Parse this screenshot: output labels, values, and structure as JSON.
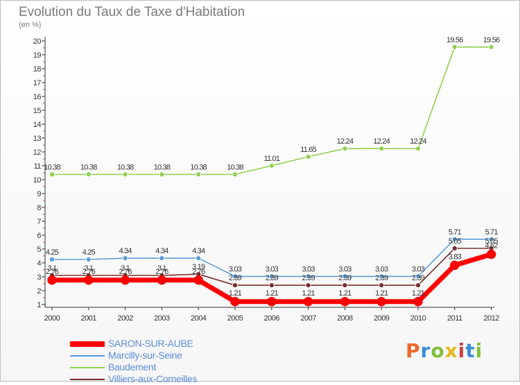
{
  "header": {
    "title": "Evolution du Taux de Taxe d'Habitation",
    "subtitle": "(en %)"
  },
  "logo": {
    "text": "Proxiti",
    "colors": [
      "#e8692c",
      "#3a8ed2",
      "#7fbf3a",
      "#e6b819",
      "#d33f3f",
      "#3a8ed2",
      "#7fbf3a"
    ]
  },
  "chart_data": {
    "type": "line",
    "title": "Evolution du Taux de Taxe d'Habitation",
    "ylabel": "(en %)",
    "xlabel": "",
    "categories": [
      "2000",
      "2001",
      "2002",
      "2003",
      "2004",
      "2005",
      "2006",
      "2007",
      "2008",
      "2009",
      "2010",
      "2011",
      "2012"
    ],
    "ylim": [
      1,
      20
    ],
    "yticks": [
      1,
      2,
      3,
      4,
      5,
      6,
      7,
      8,
      9,
      10,
      11,
      12,
      13,
      14,
      15,
      16,
      17,
      18,
      19,
      20
    ],
    "grid": false,
    "legend_position": "bottom-left",
    "series": [
      {
        "name": "SARON-SUR-AUBE",
        "color": "#ff0000",
        "values": [
          2.76,
          2.76,
          2.76,
          2.76,
          2.76,
          1.21,
          1.21,
          1.21,
          1.21,
          1.21,
          1.21,
          3.83,
          4.62
        ],
        "labels": [
          "2.76",
          "2.76",
          "2.76",
          "2.76",
          "2.76",
          "1.21",
          "1.21",
          "1.21",
          "1.21",
          "1.21",
          "1.21",
          "3.83",
          "4.62"
        ]
      },
      {
        "name": "Marcilly-sur-Seine",
        "color": "#5b9bd5",
        "values": [
          4.25,
          4.25,
          4.34,
          4.34,
          4.34,
          3.03,
          3.03,
          3.03,
          3.03,
          3.03,
          3.03,
          5.71,
          5.71
        ],
        "labels": [
          "4.25",
          "4.25",
          "4.34",
          "4.34",
          "4.34",
          "3.03",
          "3.03",
          "3.03",
          "3.03",
          "3.03",
          "3.03",
          "5.71",
          "5.71"
        ]
      },
      {
        "name": "Baudement",
        "color": "#8fd14f",
        "values": [
          10.38,
          10.38,
          10.38,
          10.38,
          10.38,
          10.38,
          11.01,
          11.65,
          12.24,
          12.24,
          12.24,
          19.56,
          19.56
        ],
        "labels": [
          "10.38",
          "10.38",
          "10.38",
          "10.38",
          "10.38",
          "10.38",
          "11.01",
          "11.65",
          "12.24",
          "12.24",
          "12.24",
          "19.56",
          "19.56"
        ]
      },
      {
        "name": "Villiers-aux-Corneilles",
        "color": "#7b2b2b",
        "values": [
          3.1,
          3.1,
          3.1,
          3.1,
          3.19,
          2.39,
          2.39,
          2.39,
          2.39,
          2.39,
          2.39,
          5.05,
          5.05
        ],
        "labels": [
          "3.1",
          "3.1",
          "3.1",
          "3.1",
          "3.19",
          "2.39",
          "2.39",
          "2.39",
          "2.39",
          "2.39",
          "2.39",
          "5.05",
          "5.05"
        ]
      }
    ]
  }
}
